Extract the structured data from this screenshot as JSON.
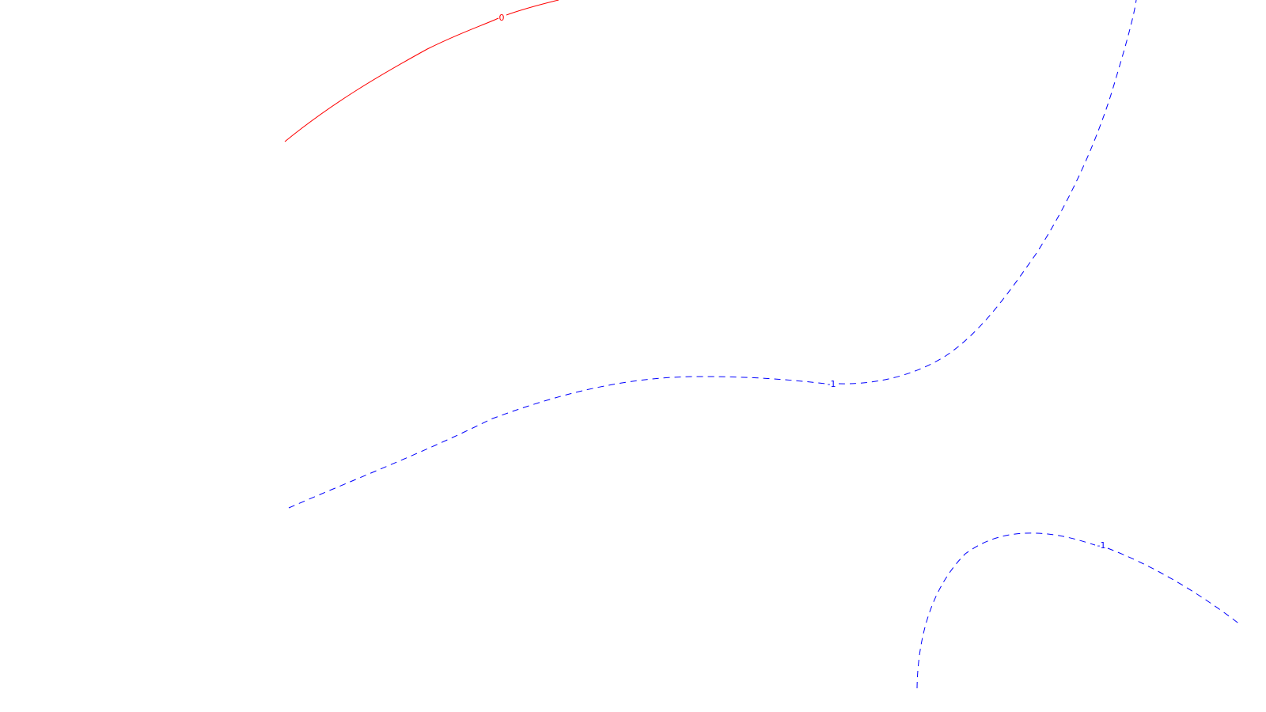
{
  "colors": {
    "background": "#ffffff",
    "positive_contour": "#ff0000",
    "negative_contour": "#0000ff"
  },
  "contours": {
    "zero": {
      "label": "0",
      "style": "solid",
      "color": "#ff0000"
    },
    "neg_upper": {
      "label": "-1",
      "style": "dashed",
      "color": "#0000ff"
    },
    "neg_lower": {
      "label": "-1",
      "style": "dashed",
      "color": "#0000ff"
    }
  }
}
